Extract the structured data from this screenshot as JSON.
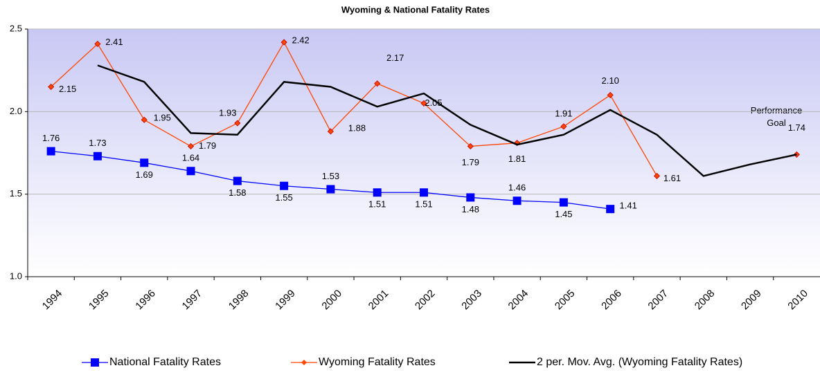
{
  "chart_data": {
    "type": "line",
    "title": "Wyoming & National Fatality Rates",
    "annotations": [
      "Performance Goal"
    ],
    "categories": [
      "1994",
      "1995",
      "1996",
      "1997",
      "1998",
      "1999",
      "2000",
      "2001",
      "2002",
      "2003",
      "2004",
      "2005",
      "2006",
      "2007",
      "2008",
      "2009",
      "2010"
    ],
    "series": [
      {
        "name": "National Fatality Rates",
        "color": "#0000ff",
        "marker": "square",
        "values": [
          1.76,
          1.73,
          1.69,
          1.64,
          1.58,
          1.55,
          1.53,
          1.51,
          1.51,
          1.48,
          1.46,
          1.45,
          1.41,
          null,
          null,
          null,
          null
        ],
        "value_labels": [
          "1.76",
          "1.73",
          "1.69",
          "1.64",
          "1.58",
          "1.55",
          "1.53",
          "1.51",
          "1.51",
          "1.48",
          "1.46",
          "1.45",
          "1.41",
          null,
          null,
          null,
          null
        ]
      },
      {
        "name": "Wyoming Fatality Rates",
        "color": "#ff4500",
        "marker": "diamond",
        "values": [
          2.15,
          2.41,
          1.95,
          1.79,
          1.93,
          2.42,
          1.88,
          2.17,
          2.05,
          1.79,
          1.81,
          1.91,
          2.1,
          1.61,
          null,
          null,
          1.74
        ],
        "value_labels": [
          "2.15",
          "2.41",
          "1.95",
          "1.79",
          "1.93",
          "2.42",
          "1.88",
          "2.17",
          "2.05",
          "1.79",
          "1.81",
          "1.91",
          "2.10",
          "1.61",
          null,
          null,
          "1.74"
        ]
      },
      {
        "name": "2 per. Mov. Avg. (Wyoming Fatality Rates)",
        "color": "#000000",
        "marker": "none",
        "values": [
          null,
          2.28,
          2.18,
          1.87,
          1.86,
          2.18,
          2.15,
          2.03,
          2.11,
          1.92,
          1.8,
          1.86,
          2.01,
          1.86,
          1.61,
          1.68,
          1.74
        ]
      }
    ],
    "ylim": [
      1,
      2.5
    ],
    "yticks": [
      {
        "value": 1,
        "label": "1.0"
      },
      1.5,
      {
        "value": 2,
        "label": "2.0"
      },
      2.5
    ],
    "grid": true,
    "legend": "bottom"
  }
}
